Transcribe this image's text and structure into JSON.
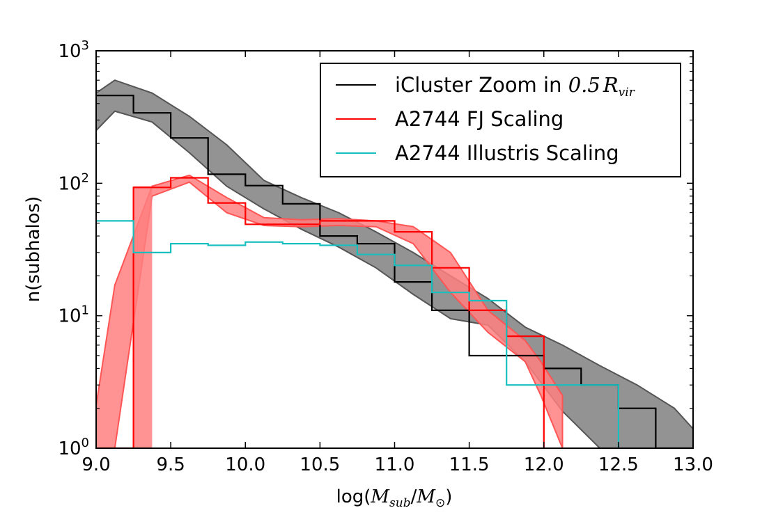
{
  "chart_data": {
    "type": "step-histogram-with-bands",
    "xlabel": {
      "prefix": "log(",
      "m1": "M",
      "m1_sub": "sub",
      "slash": "/",
      "m2": "M",
      "m2_sub": "⊙",
      "suffix": ")"
    },
    "ylabel": "n(subhalos)",
    "xlim": [
      9.0,
      13.0
    ],
    "ylim": [
      1,
      1000
    ],
    "yscale": "log",
    "x_ticks": [
      9.0,
      9.5,
      10.0,
      10.5,
      11.0,
      11.5,
      12.0,
      12.5,
      13.0
    ],
    "x_tick_labels": [
      "9.0",
      "9.5",
      "10.0",
      "10.5",
      "11.0",
      "11.5",
      "12.0",
      "12.5",
      "13.0"
    ],
    "y_ticks": [
      {
        "value": 1,
        "base": "10",
        "exp": "0"
      },
      {
        "value": 10,
        "base": "10",
        "exp": "1"
      },
      {
        "value": 100,
        "base": "10",
        "exp": "2"
      },
      {
        "value": 1000,
        "base": "10",
        "exp": "3"
      }
    ],
    "legend": {
      "position": "upper-right",
      "entries": [
        {
          "series": "icluster",
          "label": "iCluster Zoom in ",
          "math": "0.5",
          "math_var": "R",
          "math_sub": "vir",
          "color": "#000000"
        },
        {
          "series": "fj",
          "label": "A2744 FJ Scaling",
          "color": "#ff0000"
        },
        {
          "series": "illustris",
          "label": "A2744 Illustris Scaling",
          "color": "#17bfbf"
        }
      ]
    },
    "bands": [
      {
        "name": "icluster-band",
        "fill": "#808080",
        "edge": "#555555",
        "x": [
          9.0,
          9.125,
          9.375,
          9.625,
          9.875,
          10.125,
          10.375,
          10.625,
          10.875,
          11.125,
          11.375,
          11.625,
          11.875,
          12.125,
          12.375,
          12.625,
          12.875,
          13.0
        ],
        "upper": [
          480,
          600,
          480,
          320,
          195,
          105,
          78,
          60,
          43,
          30,
          20,
          13.5,
          8.2,
          6.0,
          4.2,
          3.0,
          2.0,
          1.4
        ],
        "lower": [
          250,
          350,
          290,
          170,
          95,
          64,
          45,
          33,
          23,
          14.5,
          9.5,
          8.5,
          4.5,
          1.9,
          1.0,
          1.0,
          1.0,
          1.0
        ]
      },
      {
        "name": "fj-band",
        "fill": "#ff7f7f",
        "edge": "#ff5555",
        "x": [
          9.0,
          9.125,
          9.375,
          9.625,
          9.875,
          10.125,
          10.375,
          10.625,
          10.875,
          11.125,
          11.375,
          11.625,
          11.875,
          11.98,
          12.125
        ],
        "upper": [
          2.1,
          17,
          95,
          115,
          78,
          55,
          53,
          54,
          52,
          47,
          30,
          11,
          6.5,
          4.5,
          2.5
        ],
        "lower": [
          1.0,
          1.0,
          80,
          102,
          60,
          48,
          47,
          48,
          47,
          35,
          15,
          7.5,
          4.5,
          2.5,
          1.0
        ],
        "spike_x": [
          9.25,
          9.375
        ]
      }
    ],
    "series": [
      {
        "name": "icluster",
        "color": "#000000",
        "bin_edges": [
          9.0,
          9.25,
          9.5,
          9.75,
          10.0,
          10.25,
          10.5,
          10.75,
          11.0,
          11.25,
          11.5,
          11.75,
          12.0,
          12.25,
          12.5,
          12.75,
          13.0
        ],
        "values": [
          460,
          340,
          220,
          117,
          96,
          70,
          40,
          35,
          18,
          11,
          5,
          5,
          4,
          3,
          2,
          1
        ]
      },
      {
        "name": "fj",
        "color": "#ff0000",
        "bin_edges": [
          9.0,
          9.25,
          9.5,
          9.75,
          10.0,
          10.25,
          10.5,
          10.75,
          11.0,
          11.25,
          11.5,
          11.75,
          12.0
        ],
        "values": [
          1,
          93,
          110,
          71,
          49,
          49,
          52,
          52,
          43,
          23,
          11,
          7
        ]
      },
      {
        "name": "illustris",
        "color": "#17bfbf",
        "bin_edges": [
          9.0,
          9.25,
          9.5,
          9.75,
          10.0,
          10.25,
          10.5,
          10.75,
          11.0,
          11.25,
          11.5,
          11.75,
          12.0,
          12.25,
          12.5
        ],
        "values": [
          52,
          30,
          35,
          34,
          36,
          35,
          34,
          29,
          24,
          15,
          13,
          3,
          3,
          3
        ]
      }
    ]
  }
}
